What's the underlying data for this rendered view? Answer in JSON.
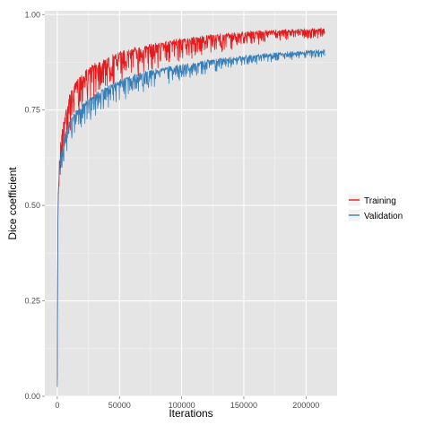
{
  "chart_data": {
    "type": "line",
    "title": "",
    "xlabel": "Iterations",
    "ylabel": "Dice coefficient",
    "xlim": [
      -10000,
      225000
    ],
    "ylim": [
      0,
      1.01
    ],
    "x_ticks": [
      {
        "value": 0,
        "label": "0"
      },
      {
        "value": 50000,
        "label": "50000"
      },
      {
        "value": 100000,
        "label": "100000"
      },
      {
        "value": 150000,
        "label": "150000"
      },
      {
        "value": 200000,
        "label": "200000"
      }
    ],
    "y_ticks": [
      {
        "value": 0,
        "label": "0.00"
      },
      {
        "value": 0.25,
        "label": "0.25"
      },
      {
        "value": 0.5,
        "label": "0.50"
      },
      {
        "value": 0.75,
        "label": "0.75"
      },
      {
        "value": 1.0,
        "label": "1.00"
      }
    ],
    "grid": true,
    "background": "#e5e5e5",
    "legend_position": "right",
    "series": [
      {
        "name": "Training",
        "color": "#e41a1c",
        "x": [
          0,
          500,
          1000,
          2000,
          3000,
          5000,
          7500,
          10000,
          15000,
          20000,
          30000,
          40000,
          50000,
          60000,
          75000,
          100000,
          125000,
          150000,
          175000,
          200000,
          215000
        ],
        "y": [
          0.04,
          0.5,
          0.58,
          0.64,
          0.68,
          0.72,
          0.76,
          0.79,
          0.82,
          0.845,
          0.87,
          0.885,
          0.9,
          0.91,
          0.92,
          0.935,
          0.945,
          0.952,
          0.957,
          0.96,
          0.962
        ]
      },
      {
        "name": "Validation",
        "color": "#377eb8",
        "x": [
          0,
          500,
          1000,
          2000,
          3000,
          5000,
          7500,
          10000,
          15000,
          20000,
          30000,
          40000,
          50000,
          60000,
          75000,
          100000,
          125000,
          150000,
          175000,
          200000,
          215000
        ],
        "y": [
          0.04,
          0.48,
          0.55,
          0.61,
          0.64,
          0.67,
          0.7,
          0.72,
          0.745,
          0.765,
          0.79,
          0.81,
          0.825,
          0.838,
          0.852,
          0.868,
          0.88,
          0.89,
          0.897,
          0.903,
          0.905
        ]
      }
    ]
  }
}
